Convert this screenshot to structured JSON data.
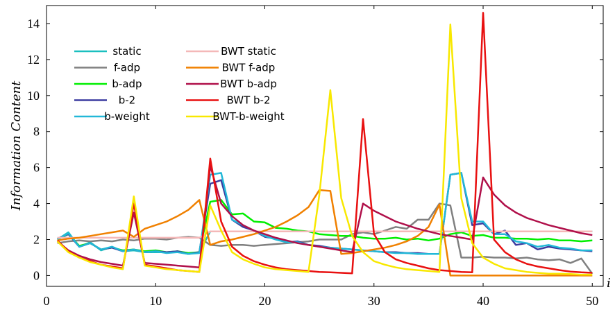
{
  "chart_data": {
    "type": "line",
    "title": "",
    "xlabel": "i",
    "ylabel": "Information Content",
    "xlim": [
      0,
      51
    ],
    "ylim": [
      -0.6,
      15
    ],
    "xticks": [
      0,
      10,
      20,
      30,
      40,
      50
    ],
    "yticks": [
      0,
      2,
      4,
      6,
      8,
      10,
      12,
      14
    ],
    "grid": false,
    "legend_position": "top-left",
    "x": [
      1,
      2,
      3,
      4,
      5,
      6,
      7,
      8,
      9,
      10,
      11,
      12,
      13,
      14,
      15,
      16,
      17,
      18,
      19,
      20,
      21,
      22,
      23,
      24,
      25,
      26,
      27,
      28,
      29,
      30,
      31,
      32,
      33,
      34,
      35,
      36,
      37,
      38,
      39,
      40,
      41,
      42,
      43,
      44,
      45,
      46,
      47,
      48,
      49,
      50
    ],
    "series": [
      {
        "name": "static",
        "color": "#1bbfbf",
        "values": [
          2.0,
          2.4,
          1.6,
          1.85,
          1.4,
          1.6,
          1.35,
          1.4,
          1.3,
          1.3,
          1.3,
          1.3,
          1.2,
          1.3,
          2.45,
          2.45,
          2.45,
          2.45,
          2.45,
          2.45,
          2.45,
          2.45,
          2.45,
          2.45,
          2.45,
          2.45,
          2.45,
          2.45,
          2.45,
          2.45,
          2.45,
          2.45,
          2.45,
          2.45,
          2.45,
          2.45,
          2.45,
          2.45,
          2.45,
          2.45,
          2.45,
          2.45,
          2.45,
          2.45,
          2.45,
          2.45,
          2.45,
          2.45,
          2.45,
          2.45
        ]
      },
      {
        "name": "f-adp",
        "color": "#808080",
        "values": [
          1.8,
          1.9,
          1.95,
          1.9,
          1.95,
          1.9,
          2.0,
          1.95,
          2.05,
          2.05,
          2.0,
          2.1,
          2.15,
          2.1,
          1.7,
          1.65,
          1.7,
          1.7,
          1.65,
          1.7,
          1.75,
          1.8,
          1.85,
          1.9,
          2.0,
          2.0,
          2.0,
          2.3,
          2.4,
          2.3,
          2.5,
          2.7,
          2.6,
          3.1,
          3.1,
          4.0,
          3.9,
          1.0,
          1.0,
          1.05,
          1.0,
          1.0,
          0.95,
          1.0,
          0.9,
          0.85,
          0.9,
          0.7,
          0.95,
          0.1
        ]
      },
      {
        "name": "b-adp",
        "color": "#00ee00",
        "values": [
          2.0,
          2.3,
          1.65,
          1.8,
          1.45,
          1.55,
          1.4,
          1.45,
          1.35,
          1.4,
          1.3,
          1.35,
          1.25,
          1.3,
          4.1,
          4.2,
          3.4,
          3.45,
          3.0,
          2.95,
          2.65,
          2.6,
          2.5,
          2.45,
          2.3,
          2.25,
          2.2,
          2.2,
          2.1,
          2.05,
          2.05,
          2.1,
          2.0,
          2.05,
          1.95,
          2.05,
          2.3,
          2.4,
          2.2,
          2.25,
          2.1,
          2.1,
          2.05,
          2.05,
          2.0,
          2.05,
          1.95,
          1.95,
          1.9,
          1.95
        ]
      },
      {
        "name": "b-2",
        "color": "#3c3ca0",
        "values": [
          2.05,
          2.3,
          1.6,
          1.8,
          1.45,
          1.55,
          1.35,
          1.45,
          1.3,
          1.35,
          1.3,
          1.35,
          1.2,
          1.3,
          5.1,
          5.3,
          3.1,
          2.7,
          2.5,
          2.15,
          2.05,
          1.85,
          1.9,
          1.7,
          1.65,
          1.55,
          1.5,
          1.45,
          1.4,
          1.35,
          1.3,
          1.3,
          1.25,
          1.25,
          1.2,
          1.2,
          5.6,
          5.7,
          2.8,
          2.9,
          2.3,
          2.5,
          1.7,
          1.8,
          1.45,
          1.6,
          1.5,
          1.45,
          1.4,
          1.35
        ]
      },
      {
        "name": "b-weight",
        "color": "#22b8d8",
        "values": [
          2.0,
          2.35,
          1.6,
          1.8,
          1.45,
          1.6,
          1.35,
          1.45,
          1.3,
          1.35,
          1.25,
          1.3,
          1.2,
          1.25,
          5.6,
          5.7,
          3.1,
          2.8,
          2.5,
          2.2,
          2.0,
          1.85,
          1.85,
          1.7,
          1.6,
          1.55,
          1.5,
          1.45,
          1.4,
          1.35,
          1.3,
          1.25,
          1.25,
          1.2,
          1.2,
          1.2,
          5.6,
          5.7,
          3.0,
          3.0,
          2.3,
          2.3,
          1.9,
          1.8,
          1.6,
          1.7,
          1.55,
          1.5,
          1.4,
          1.4
        ]
      },
      {
        "name": "BWT static",
        "color": "#f4b8b8",
        "values": [
          2.1,
          2.1,
          2.1,
          2.1,
          2.1,
          2.1,
          2.1,
          2.1,
          2.1,
          2.1,
          2.1,
          2.1,
          2.1,
          2.1,
          2.45,
          2.45,
          2.45,
          2.45,
          2.45,
          2.45,
          2.45,
          2.45,
          2.45,
          2.45,
          2.45,
          2.45,
          2.45,
          2.45,
          2.45,
          2.45,
          2.45,
          2.45,
          2.45,
          2.45,
          2.45,
          2.45,
          2.45,
          2.45,
          2.45,
          2.45,
          2.45,
          2.45,
          2.45,
          2.45,
          2.45,
          2.45,
          2.45,
          2.45,
          2.45,
          2.45
        ]
      },
      {
        "name": "BWT f-adp",
        "color": "#f08000",
        "values": [
          1.95,
          2.05,
          2.1,
          2.2,
          2.3,
          2.4,
          2.5,
          2.15,
          2.6,
          2.8,
          3.0,
          3.3,
          3.65,
          4.2,
          1.7,
          1.9,
          2.0,
          2.15,
          2.3,
          2.5,
          2.7,
          3.0,
          3.35,
          3.8,
          4.75,
          4.7,
          1.2,
          1.25,
          1.35,
          1.45,
          1.55,
          1.7,
          1.9,
          2.2,
          2.7,
          3.95,
          0.0,
          0.0,
          0.0,
          0.0,
          0.0,
          0.0,
          0.0,
          0.0,
          0.0,
          0.0,
          0.0,
          0.0,
          0.0,
          0.0
        ]
      },
      {
        "name": "BWT b-adp",
        "color": "#b0104a",
        "values": [
          1.9,
          1.4,
          1.1,
          0.9,
          0.75,
          0.65,
          0.55,
          3.5,
          0.7,
          0.65,
          0.6,
          0.55,
          0.5,
          0.45,
          6.1,
          4.0,
          3.3,
          2.8,
          2.5,
          2.3,
          2.1,
          1.95,
          1.8,
          1.7,
          1.6,
          1.5,
          1.4,
          1.3,
          4.0,
          3.6,
          3.3,
          3.0,
          2.8,
          2.6,
          2.45,
          2.3,
          2.2,
          2.1,
          2.0,
          5.45,
          4.5,
          3.9,
          3.5,
          3.2,
          3.0,
          2.8,
          2.65,
          2.5,
          2.35,
          2.25
        ]
      },
      {
        "name": "BWT b-2",
        "color": "#e81010",
        "values": [
          1.95,
          1.35,
          1.0,
          0.8,
          0.6,
          0.5,
          0.4,
          4.0,
          0.6,
          0.5,
          0.4,
          0.3,
          0.25,
          0.2,
          6.5,
          3.0,
          1.6,
          1.1,
          0.8,
          0.6,
          0.45,
          0.35,
          0.3,
          0.25,
          0.2,
          0.18,
          0.15,
          0.12,
          8.7,
          2.3,
          1.3,
          0.9,
          0.7,
          0.55,
          0.4,
          0.3,
          0.25,
          0.2,
          0.18,
          14.6,
          2.0,
          1.3,
          0.9,
          0.65,
          0.5,
          0.4,
          0.3,
          0.22,
          0.18,
          0.15
        ]
      },
      {
        "name": "BWT-b-weight",
        "color": "#f8e800",
        "values": [
          1.9,
          1.3,
          1.0,
          0.75,
          0.6,
          0.45,
          0.35,
          4.4,
          0.55,
          0.45,
          0.35,
          0.3,
          0.25,
          0.2,
          3.9,
          2.5,
          1.3,
          0.9,
          0.65,
          0.45,
          0.35,
          0.3,
          0.25,
          0.2,
          4.5,
          10.3,
          4.3,
          2.2,
          1.3,
          0.8,
          0.6,
          0.45,
          0.35,
          0.3,
          0.25,
          0.2,
          13.95,
          4.3,
          1.8,
          1.0,
          0.65,
          0.4,
          0.3,
          0.2,
          0.15,
          0.1,
          0.1,
          0.08,
          0.05,
          0.05
        ]
      }
    ]
  }
}
